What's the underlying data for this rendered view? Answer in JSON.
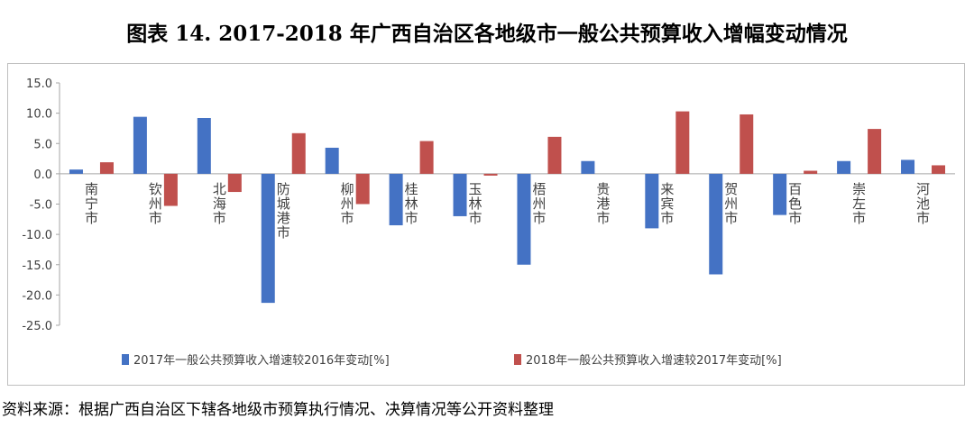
{
  "title": "图表 14.   2017-2018 年广西自治区各地级市一般公共预算收入增幅变动情况",
  "source": "资料来源：根据广西自治区下辖各地级市预算执行情况、决算情况等公开资料整理",
  "chart_data": {
    "type": "bar",
    "categories": [
      "南宁市",
      "钦州市",
      "北海市",
      "防城港市",
      "柳州市",
      "桂林市",
      "玉林市",
      "梧州市",
      "贵港市",
      "来宾市",
      "贺州市",
      "百色市",
      "崇左市",
      "河池市"
    ],
    "series": [
      {
        "name": "2017年一般公共预算收入增速较2016年变动[%]",
        "color": "#4472c4",
        "values": [
          0.7,
          9.4,
          9.2,
          -21.3,
          4.3,
          -8.5,
          -7.0,
          -15.0,
          2.1,
          -9.0,
          -16.6,
          -6.8,
          2.1,
          2.3
        ]
      },
      {
        "name": "2018年一般公共预算收入增速较2017年变动[%]",
        "color": "#c0504d",
        "values": [
          1.9,
          -5.3,
          -3.0,
          6.7,
          -5.0,
          5.4,
          -0.3,
          6.1,
          0.0,
          10.3,
          9.8,
          0.5,
          7.4,
          1.4
        ]
      }
    ],
    "yticks": [
      "15.0",
      "10.0",
      "5.0",
      "0.0",
      "-5.0",
      "-10.0",
      "-15.0",
      "-20.0",
      "-25.0"
    ],
    "ylim": [
      -25,
      15
    ],
    "negative_tick_color": "#ff0000",
    "legend_position": "bottom",
    "grid": false
  }
}
